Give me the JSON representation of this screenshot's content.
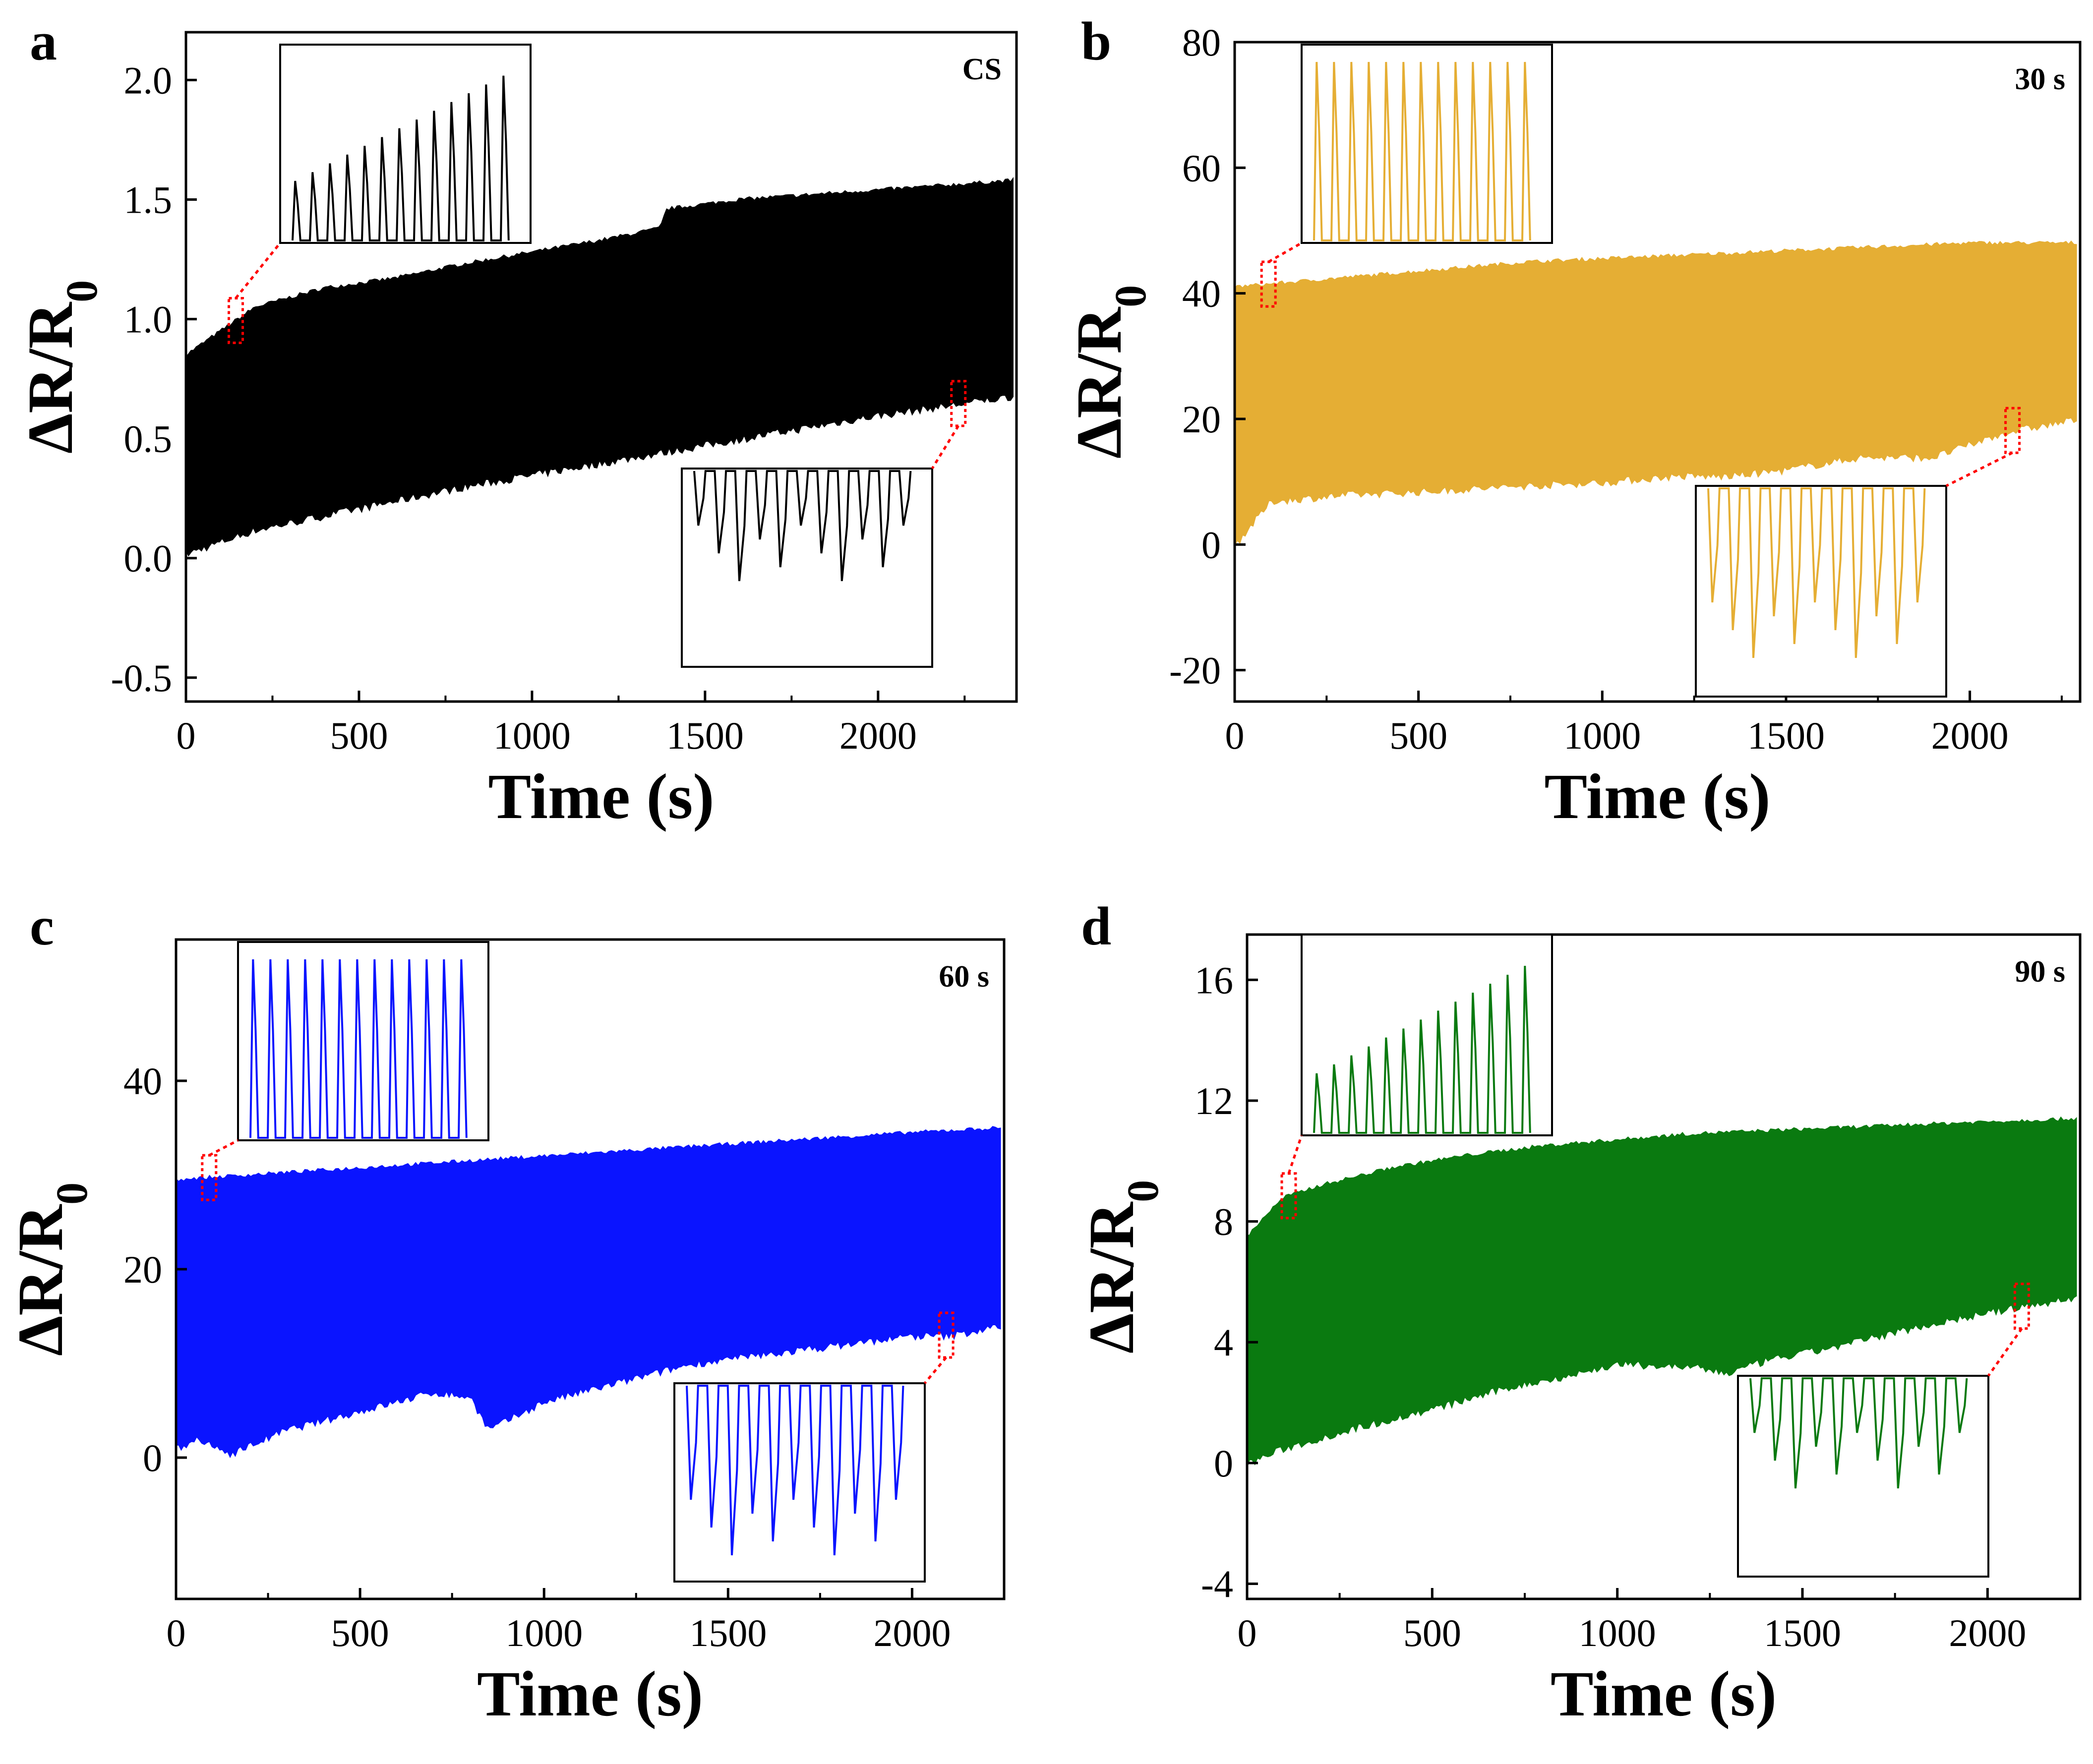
{
  "figure": {
    "description_free": true
  },
  "chart_data": [
    {
      "panel": "a",
      "type": "area",
      "label": "CS",
      "color": "#000000",
      "xlabel": "Time (s)",
      "ylabel_main": "ΔR/R",
      "ylabel_sub": "0",
      "xlim": [
        0,
        2400
      ],
      "ylim": [
        -0.6,
        2.2
      ],
      "xticks": [
        0,
        500,
        1000,
        1500,
        2000
      ],
      "xtick_labels": [
        "0",
        "500",
        "1000",
        "1500",
        "2000"
      ],
      "yticks": [
        -0.5,
        0.0,
        0.5,
        1.0,
        1.5,
        2.0
      ],
      "ytick_labels": [
        "-0.5",
        "0.0",
        "0.5",
        "1.0",
        "1.5",
        "2.0"
      ],
      "upper_envelope": {
        "x": [
          0,
          100,
          200,
          400,
          600,
          700,
          800,
          1000,
          1200,
          1370,
          1390,
          1600,
          1800,
          2000,
          2200,
          2390
        ],
        "y": [
          0.85,
          0.95,
          1.05,
          1.13,
          1.17,
          1.2,
          1.23,
          1.28,
          1.33,
          1.38,
          1.46,
          1.5,
          1.52,
          1.54,
          1.56,
          1.58
        ]
      },
      "lower_envelope": {
        "x": [
          0,
          100,
          200,
          400,
          600,
          800,
          1000,
          1200,
          1400,
          1600,
          1800,
          2000,
          2200,
          2390
        ],
        "y": [
          0.02,
          0.07,
          0.12,
          0.18,
          0.24,
          0.3,
          0.35,
          0.4,
          0.45,
          0.5,
          0.55,
          0.6,
          0.64,
          0.68
        ]
      }
    },
    {
      "panel": "b",
      "type": "area",
      "label": "30 s",
      "color": "#e5ae34",
      "xlabel": "Time (s)",
      "ylabel_main": "ΔR/R",
      "ylabel_sub": "0",
      "xlim": [
        0,
        2300
      ],
      "ylim": [
        -25,
        80
      ],
      "xticks": [
        0,
        500,
        1000,
        1500,
        2000
      ],
      "xtick_labels": [
        "0",
        "500",
        "1000",
        "1500",
        "2000"
      ],
      "yticks": [
        -20,
        0,
        20,
        40,
        60,
        80
      ],
      "ytick_labels": [
        "-20",
        "0",
        "20",
        "40",
        "60",
        "80"
      ],
      "upper_envelope": {
        "x": [
          0,
          200,
          400,
          600,
          800,
          1000,
          1200,
          1400,
          1600,
          1800,
          2000,
          2290
        ],
        "y": [
          41,
          42,
          43,
          44,
          45,
          45.5,
          46,
          46.5,
          47,
          47.5,
          48,
          48
        ]
      },
      "lower_envelope": {
        "x": [
          0,
          100,
          300,
          500,
          800,
          1000,
          1200,
          1350,
          1500,
          1700,
          1900,
          2100,
          2290
        ],
        "y": [
          0,
          7,
          8,
          8.5,
          9.5,
          10,
          11,
          11,
          12,
          14,
          14,
          18,
          20
        ]
      }
    },
    {
      "panel": "c",
      "type": "area",
      "label": "60 s",
      "color": "#0a14ff",
      "xlabel": "Time (s)",
      "ylabel_main": "ΔR/R",
      "ylabel_sub": "0",
      "xlim": [
        0,
        2250
      ],
      "ylim": [
        -15,
        55
      ],
      "xticks": [
        0,
        500,
        1000,
        1500,
        2000
      ],
      "xtick_labels": [
        "0",
        "500",
        "1000",
        "1500",
        "2000"
      ],
      "yticks": [
        0,
        20,
        40
      ],
      "ytick_labels": [
        "0",
        "20",
        "40"
      ],
      "upper_envelope": {
        "x": [
          0,
          200,
          400,
          600,
          800,
          1000,
          1200,
          1400,
          1600,
          1800,
          2000,
          2240
        ],
        "y": [
          29.5,
          30,
          30.5,
          31,
          31.5,
          32,
          32.5,
          33,
          33.5,
          34,
          34.5,
          35
        ]
      },
      "lower_envelope": {
        "x": [
          0,
          50,
          150,
          300,
          500,
          700,
          800,
          850,
          1000,
          1200,
          1400,
          1600,
          1800,
          2000,
          2100,
          2240
        ],
        "y": [
          1,
          2,
          0.5,
          3,
          5,
          7,
          6.5,
          3,
          6,
          8,
          10,
          11,
          12,
          13,
          13,
          14
        ]
      }
    },
    {
      "panel": "d",
      "type": "area",
      "label": "90 s",
      "color": "#0a7a10",
      "xlabel": "Time (s)",
      "ylabel_main": "ΔR/R",
      "ylabel_sub": "0",
      "xlim": [
        0,
        2250
      ],
      "ylim": [
        -4.5,
        17.5
      ],
      "xticks": [
        0,
        500,
        1000,
        1500,
        2000
      ],
      "xtick_labels": [
        "0",
        "500",
        "1000",
        "1500",
        "2000"
      ],
      "yticks": [
        -4,
        0,
        4,
        8,
        12,
        16
      ],
      "ytick_labels": [
        "-4",
        "0",
        "4",
        "8",
        "12",
        "16"
      ],
      "upper_envelope": {
        "x": [
          0,
          50,
          100,
          200,
          400,
          600,
          800,
          1000,
          1200,
          1400,
          1600,
          1800,
          2000,
          2240
        ],
        "y": [
          7.5,
          8.2,
          8.8,
          9.2,
          9.8,
          10.2,
          10.5,
          10.7,
          10.9,
          11.0,
          11.1,
          11.2,
          11.3,
          11.4
        ]
      },
      "lower_envelope": {
        "x": [
          0,
          100,
          300,
          500,
          700,
          900,
          1000,
          1200,
          1300,
          1400,
          1600,
          1800,
          2000,
          2240
        ],
        "y": [
          0,
          0.5,
          1.2,
          1.8,
          2.5,
          3.0,
          3.3,
          3.2,
          3.0,
          3.4,
          3.9,
          4.5,
          5.0,
          5.5
        ]
      }
    }
  ]
}
